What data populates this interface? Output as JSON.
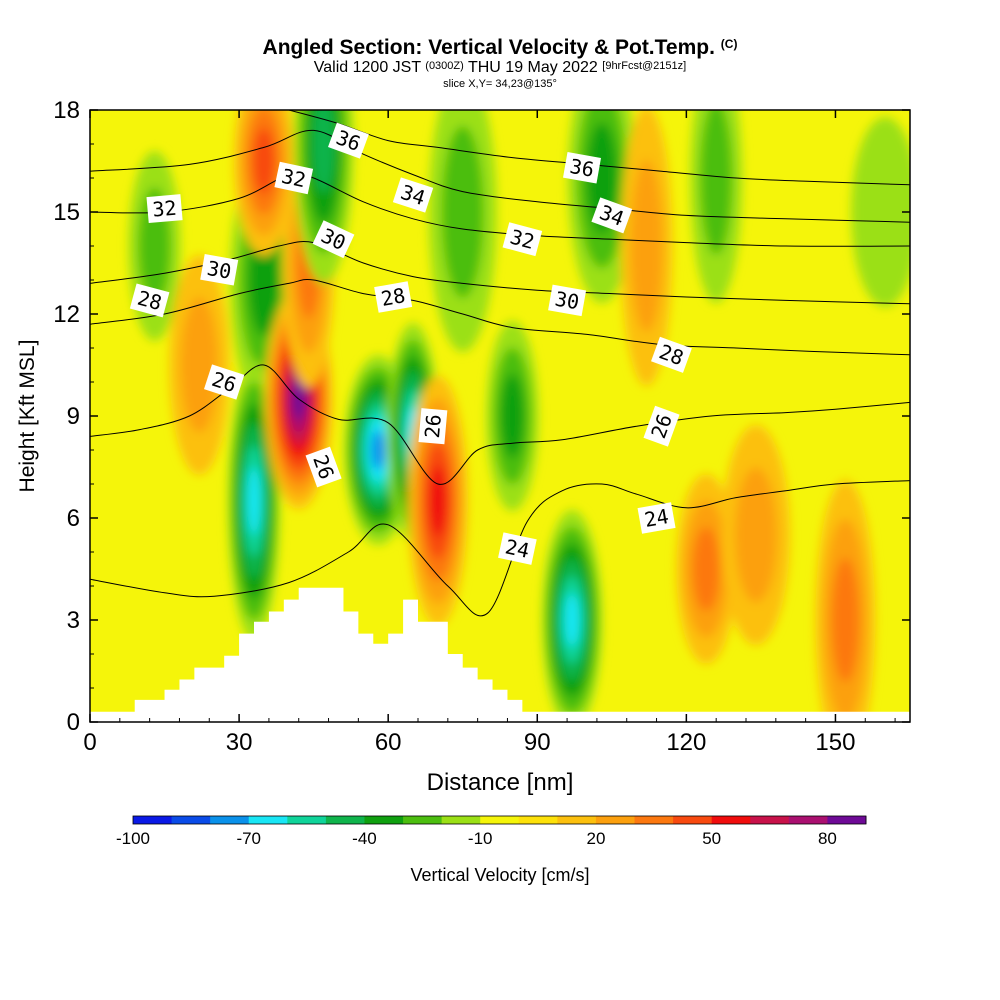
{
  "title": {
    "main": "Angled Section: Vertical Velocity & Pot.Temp.",
    "mark": "(C)",
    "valid_prefix": "Valid 1200 JST",
    "valid_utc": "(0300Z)",
    "valid_date": "THU 19 May 2022",
    "forecast": "[9hrFcst@2151z]",
    "slice": "slice X,Y= 34,23@135°"
  },
  "chart_data": {
    "type": "heatmap",
    "xlabel": "Distance [nm]",
    "ylabel": "Height [Kft MSL]",
    "xlim": [
      0,
      165
    ],
    "ylim": [
      0,
      18
    ],
    "xticks": [
      0,
      30,
      60,
      90,
      120,
      150
    ],
    "yticks": [
      0,
      3,
      6,
      9,
      12,
      15,
      18
    ],
    "colorbar": {
      "label": "Vertical Velocity [cm/s]",
      "tick_labels": [
        "-100",
        "-70",
        "-40",
        "-10",
        "20",
        "50",
        "80"
      ],
      "colors": [
        "#0a19e6",
        "#0a4be8",
        "#0a91ea",
        "#19e6f5",
        "#10d49a",
        "#10b44c",
        "#10a010",
        "#4cbe10",
        "#9be016",
        "#f5f50a",
        "#fde10a",
        "#fcc00e",
        "#fca00e",
        "#fc7810",
        "#f84a10",
        "#f00c0c",
        "#c8124a",
        "#aa1070",
        "#6e0a96"
      ]
    },
    "vertical_velocity_cells": [
      {
        "x": 13,
        "y": 14,
        "w": -20
      },
      {
        "x": 22,
        "y": 10.5,
        "w": 20
      },
      {
        "x": 35,
        "y": 13,
        "w": -25
      },
      {
        "x": 33,
        "y": 6.5,
        "w": -55
      },
      {
        "x": 35,
        "y": 16.5,
        "w": 40
      },
      {
        "x": 42,
        "y": 9.5,
        "w": 80
      },
      {
        "x": 44,
        "y": 13.5,
        "w": 30
      },
      {
        "x": 47,
        "y": 17,
        "w": -35
      },
      {
        "x": 58,
        "y": 8,
        "w": -65
      },
      {
        "x": 65,
        "y": 8.5,
        "w": -55
      },
      {
        "x": 70,
        "y": 6.5,
        "w": 50
      },
      {
        "x": 75,
        "y": 15,
        "w": -15
      },
      {
        "x": 85,
        "y": 9,
        "w": -25
      },
      {
        "x": 97,
        "y": 3,
        "w": -55
      },
      {
        "x": 103,
        "y": 16,
        "w": -25
      },
      {
        "x": 112,
        "y": 14,
        "w": 20
      },
      {
        "x": 124,
        "y": 4.5,
        "w": 30
      },
      {
        "x": 134,
        "y": 5.5,
        "w": 20
      },
      {
        "x": 126,
        "y": 16,
        "w": -15
      },
      {
        "x": 152,
        "y": 3,
        "w": 30
      },
      {
        "x": 160,
        "y": 15,
        "w": -10
      }
    ],
    "potential_temperature_contours": [
      {
        "label": "24",
        "x": [
          0,
          15,
          25,
          40,
          52,
          60,
          72,
          80,
          88,
          95,
          103,
          110,
          120,
          130,
          140,
          150,
          165
        ],
        "y": [
          4.2,
          3.8,
          3.7,
          4.1,
          5.0,
          5.8,
          4.0,
          3.2,
          5.9,
          6.8,
          7.0,
          6.7,
          6.3,
          6.6,
          6.8,
          7.0,
          7.1
        ]
      },
      {
        "label": "26",
        "x": [
          0,
          10,
          20,
          28,
          35,
          42,
          50,
          60,
          70,
          78,
          85,
          95,
          110,
          125,
          140,
          150,
          165
        ],
        "y": [
          8.4,
          8.6,
          9.0,
          9.8,
          10.5,
          9.5,
          8.9,
          8.8,
          7.0,
          8.0,
          8.2,
          8.3,
          8.7,
          9.0,
          9.1,
          9.2,
          9.4
        ]
      },
      {
        "label": "28",
        "x": [
          0,
          15,
          30,
          40,
          45,
          55,
          65,
          75,
          85,
          100,
          115,
          130,
          145,
          165
        ],
        "y": [
          11.7,
          12.0,
          12.6,
          12.9,
          13.0,
          12.6,
          12.4,
          12.0,
          11.6,
          11.4,
          11.1,
          11.0,
          10.9,
          10.8
        ]
      },
      {
        "label": "30",
        "x": [
          0,
          15,
          28,
          38,
          45,
          55,
          65,
          75,
          90,
          105,
          120,
          140,
          165
        ],
        "y": [
          12.9,
          13.2,
          13.6,
          14.0,
          14.1,
          13.5,
          13.1,
          12.9,
          12.7,
          12.6,
          12.5,
          12.4,
          12.3
        ]
      },
      {
        "label": "32",
        "x": [
          0,
          15,
          30,
          40,
          45,
          55,
          65,
          75,
          90,
          105,
          120,
          140,
          165
        ],
        "y": [
          15.0,
          15.0,
          15.4,
          16.1,
          16.0,
          15.3,
          14.8,
          14.5,
          14.3,
          14.2,
          14.1,
          14.0,
          14.0
        ]
      },
      {
        "label": "34",
        "x": [
          0,
          20,
          35,
          45,
          55,
          65,
          75,
          90,
          105,
          120,
          140,
          165
        ],
        "y": [
          16.2,
          16.4,
          16.9,
          17.4,
          16.7,
          16.1,
          15.6,
          15.3,
          15.1,
          14.9,
          14.8,
          14.7
        ]
      },
      {
        "label": "36",
        "x": [
          40,
          50,
          60,
          70,
          85,
          100,
          115,
          130,
          145,
          165
        ],
        "y": [
          18.0,
          17.6,
          17.1,
          16.9,
          16.6,
          16.4,
          16.2,
          16.0,
          15.9,
          15.8
        ]
      }
    ],
    "contour_labels": [
      {
        "text": "24",
        "x": 86,
        "y": 5.1
      },
      {
        "text": "24",
        "x": 114,
        "y": 6.0
      },
      {
        "text": "26",
        "x": 27,
        "y": 10.0
      },
      {
        "text": "26",
        "x": 47,
        "y": 7.5
      },
      {
        "text": "26",
        "x": 69,
        "y": 8.7
      },
      {
        "text": "26",
        "x": 115,
        "y": 8.7
      },
      {
        "text": "28",
        "x": 12,
        "y": 12.4
      },
      {
        "text": "28",
        "x": 61,
        "y": 12.5
      },
      {
        "text": "28",
        "x": 117,
        "y": 10.8
      },
      {
        "text": "30",
        "x": 26,
        "y": 13.3
      },
      {
        "text": "30",
        "x": 49,
        "y": 14.2
      },
      {
        "text": "30",
        "x": 96,
        "y": 12.4
      },
      {
        "text": "32",
        "x": 15,
        "y": 15.1
      },
      {
        "text": "32",
        "x": 41,
        "y": 16.0
      },
      {
        "text": "32",
        "x": 87,
        "y": 14.2
      },
      {
        "text": "34",
        "x": 65,
        "y": 15.5
      },
      {
        "text": "34",
        "x": 105,
        "y": 14.9
      },
      {
        "text": "36",
        "x": 52,
        "y": 17.1
      },
      {
        "text": "36",
        "x": 99,
        "y": 16.3
      }
    ],
    "terrain": {
      "x": [
        0,
        9,
        9,
        15,
        15,
        18,
        18,
        21,
        21,
        27,
        27,
        30,
        30,
        33,
        33,
        36,
        36,
        39,
        39,
        42,
        42,
        51,
        51,
        54,
        54,
        57,
        57,
        60,
        60,
        63,
        63,
        66,
        66,
        72,
        72,
        75,
        75,
        78,
        78,
        81,
        81,
        84,
        84,
        87,
        87,
        90,
        90,
        165
      ],
      "y": [
        0.3,
        0.3,
        0.65,
        0.65,
        0.95,
        0.95,
        1.25,
        1.25,
        1.6,
        1.6,
        1.95,
        1.95,
        2.6,
        2.6,
        2.95,
        2.95,
        3.25,
        3.25,
        3.6,
        3.6,
        3.95,
        3.95,
        3.25,
        3.25,
        2.6,
        2.6,
        2.3,
        2.3,
        2.6,
        2.6,
        3.6,
        3.6,
        2.95,
        2.95,
        2.0,
        2.0,
        1.6,
        1.6,
        1.25,
        1.25,
        0.95,
        0.95,
        0.65,
        0.65,
        0.3,
        0.3,
        0.3,
        0.3
      ]
    }
  }
}
